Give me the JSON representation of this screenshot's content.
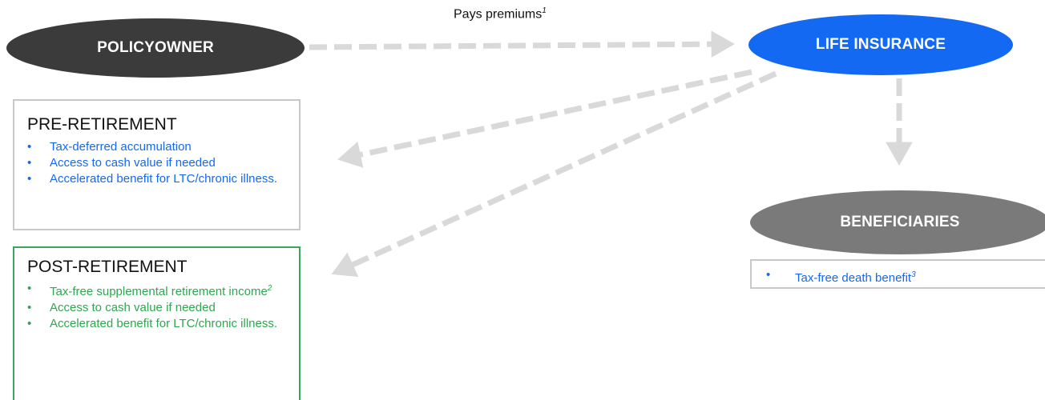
{
  "nodes": {
    "policyowner": "POLICYOWNER",
    "life_insurance": "LIFE INSURANCE",
    "beneficiaries": "BENEFICIARIES"
  },
  "edges": {
    "premiums_label": "Pays premiums",
    "premiums_footnote": "1"
  },
  "pre_retirement": {
    "title": "PRE-RETIREMENT",
    "items": [
      {
        "text": "Tax-deferred accumulation"
      },
      {
        "text": "Access to cash value if needed"
      },
      {
        "text": "Accelerated benefit for LTC/chronic illness."
      }
    ]
  },
  "post_retirement": {
    "title": "POST-RETIREMENT",
    "items": [
      {
        "text": "Tax-free supplemental retirement income",
        "footnote": "2"
      },
      {
        "text": "Access to cash value if needed"
      },
      {
        "text": "Accelerated benefit for LTC/chronic illness."
      }
    ]
  },
  "beneficiaries_box": {
    "items": [
      {
        "text": "Tax-free death benefit",
        "footnote": "3"
      }
    ]
  },
  "bullet": "•",
  "colors": {
    "policyowner_fill": "#3b3b3b",
    "life_insurance_fill": "#1469f2",
    "beneficiaries_fill": "#7a7a7a",
    "arrow": "#d9d9d9",
    "pre_text": "#1469f2",
    "post_text": "#2fa64f",
    "post_border": "#3aa65a"
  }
}
